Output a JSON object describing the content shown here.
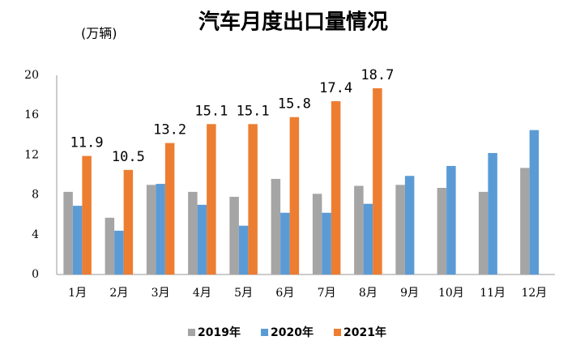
{
  "chart_data": {
    "type": "bar",
    "title": "汽车月度出口量情况",
    "y_label": "(万辆)",
    "categories": [
      "1月",
      "2月",
      "3月",
      "4月",
      "5月",
      "6月",
      "7月",
      "8月",
      "9月",
      "10月",
      "11月",
      "12月"
    ],
    "series": [
      {
        "name": "2019年",
        "color": "#a5a5a5",
        "values": [
          8.3,
          5.7,
          9.0,
          8.3,
          7.8,
          9.6,
          8.1,
          8.9,
          9.0,
          8.7,
          8.3,
          10.7
        ]
      },
      {
        "name": "2020年",
        "color": "#5b9bd5",
        "values": [
          6.9,
          4.4,
          9.1,
          7.0,
          4.9,
          6.2,
          6.2,
          7.1,
          9.9,
          10.9,
          12.2,
          14.5
        ]
      },
      {
        "name": "2021年",
        "color": "#ed7d31",
        "values": [
          11.9,
          10.5,
          13.2,
          15.1,
          15.1,
          15.8,
          17.4,
          18.7,
          null,
          null,
          null,
          null
        ]
      }
    ],
    "data_labels_series": 2,
    "ylim": [
      0,
      20
    ],
    "yticks": [
      0,
      4,
      8,
      12,
      16,
      20
    ],
    "grid": false,
    "legend": "bottom"
  }
}
